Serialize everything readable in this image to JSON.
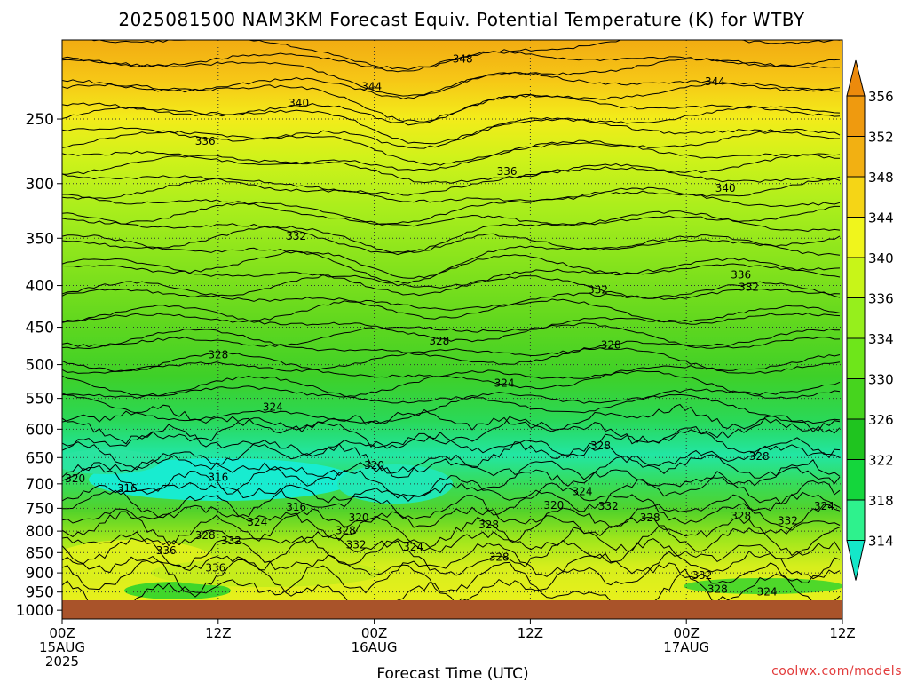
{
  "chart_data": {
    "type": "heatmap",
    "title": "2025081500 NAM3KM Forecast Equiv. Potential Temperature (K) for WTBY",
    "xlabel": "Forecast Time (UTC)",
    "ylabel": "",
    "y_scale": "log",
    "y_reversed": true,
    "y_ticks": [
      250,
      300,
      350,
      400,
      450,
      500,
      550,
      600,
      650,
      700,
      750,
      800,
      850,
      900,
      950,
      1000
    ],
    "y_range_hpa": [
      1025,
      200
    ],
    "x_range_hours": [
      0,
      60
    ],
    "x_ticks": [
      {
        "hour": 0,
        "lines": [
          "00Z",
          "15AUG",
          "2025"
        ]
      },
      {
        "hour": 12,
        "lines": [
          "12Z"
        ]
      },
      {
        "hour": 24,
        "lines": [
          "00Z",
          "16AUG"
        ]
      },
      {
        "hour": 36,
        "lines": [
          "12Z"
        ]
      },
      {
        "hour": 48,
        "lines": [
          "00Z",
          "17AUG"
        ]
      },
      {
        "hour": 60,
        "lines": [
          "12Z"
        ]
      }
    ],
    "grid": "dotted",
    "colorbar": {
      "placement": "right",
      "levels": [
        314,
        318,
        322,
        326,
        330,
        334,
        336,
        340,
        344,
        348,
        352,
        356
      ],
      "colors": [
        "#14e7c9",
        "#2ef28d",
        "#14d63c",
        "#1fc41f",
        "#46d41e",
        "#6ee61a",
        "#96ef1c",
        "#c8f518",
        "#f0f51c",
        "#f5d516",
        "#f2b012",
        "#ef9a0f",
        "#ec8a0c"
      ]
    },
    "contour_labels": [
      {
        "value": 348,
        "hour": 30.8,
        "hpa": 211
      },
      {
        "value": 344,
        "hour": 23.8,
        "hpa": 228
      },
      {
        "value": 344,
        "hour": 50.2,
        "hpa": 225
      },
      {
        "value": 340,
        "hour": 18.2,
        "hpa": 239
      },
      {
        "value": 336,
        "hour": 11.0,
        "hpa": 266
      },
      {
        "value": 336,
        "hour": 34.2,
        "hpa": 290
      },
      {
        "value": 340,
        "hour": 51.0,
        "hpa": 304
      },
      {
        "value": 332,
        "hour": 18.0,
        "hpa": 348
      },
      {
        "value": 336,
        "hour": 52.2,
        "hpa": 388
      },
      {
        "value": 332,
        "hour": 52.8,
        "hpa": 402
      },
      {
        "value": 332,
        "hour": 41.2,
        "hpa": 405
      },
      {
        "value": 328,
        "hour": 12.0,
        "hpa": 486
      },
      {
        "value": 328,
        "hour": 29.0,
        "hpa": 468
      },
      {
        "value": 328,
        "hour": 42.2,
        "hpa": 473
      },
      {
        "value": 324,
        "hour": 34.0,
        "hpa": 527
      },
      {
        "value": 324,
        "hour": 16.2,
        "hpa": 564
      },
      {
        "value": 328,
        "hour": 41.4,
        "hpa": 629
      },
      {
        "value": 328,
        "hour": 53.6,
        "hpa": 648
      },
      {
        "value": 320,
        "hour": 24.0,
        "hpa": 664
      },
      {
        "value": 320,
        "hour": 1.0,
        "hpa": 690
      },
      {
        "value": 316,
        "hour": 12.0,
        "hpa": 687
      },
      {
        "value": 316,
        "hour": 5.0,
        "hpa": 709
      },
      {
        "value": 316,
        "hour": 18.0,
        "hpa": 747
      },
      {
        "value": 324,
        "hour": 40.0,
        "hpa": 715
      },
      {
        "value": 320,
        "hour": 37.8,
        "hpa": 744
      },
      {
        "value": 332,
        "hour": 42.0,
        "hpa": 746
      },
      {
        "value": 328,
        "hour": 45.2,
        "hpa": 770
      },
      {
        "value": 324,
        "hour": 58.6,
        "hpa": 746
      },
      {
        "value": 328,
        "hour": 52.2,
        "hpa": 766
      },
      {
        "value": 332,
        "hour": 55.8,
        "hpa": 777
      },
      {
        "value": 320,
        "hour": 22.8,
        "hpa": 770
      },
      {
        "value": 324,
        "hour": 15.0,
        "hpa": 780
      },
      {
        "value": 328,
        "hour": 32.8,
        "hpa": 786
      },
      {
        "value": 328,
        "hour": 21.8,
        "hpa": 799
      },
      {
        "value": 328,
        "hour": 11.0,
        "hpa": 810
      },
      {
        "value": 332,
        "hour": 13.0,
        "hpa": 822
      },
      {
        "value": 332,
        "hour": 22.6,
        "hpa": 831
      },
      {
        "value": 324,
        "hour": 27.0,
        "hpa": 837
      },
      {
        "value": 336,
        "hour": 8.0,
        "hpa": 845
      },
      {
        "value": 328,
        "hour": 33.6,
        "hpa": 861
      },
      {
        "value": 336,
        "hour": 11.8,
        "hpa": 887
      },
      {
        "value": 332,
        "hour": 49.2,
        "hpa": 906
      },
      {
        "value": 328,
        "hour": 50.4,
        "hpa": 942
      },
      {
        "value": 324,
        "hour": 54.2,
        "hpa": 950
      }
    ]
  },
  "credit": "coolwx.com/models"
}
